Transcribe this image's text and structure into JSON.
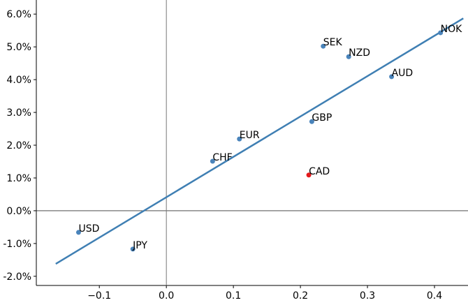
{
  "chart_data": {
    "type": "scatter",
    "categories": [
      "USD",
      "JPY",
      "CHF",
      "EUR",
      "GBP",
      "CAD",
      "SEK",
      "NZD",
      "AUD",
      "NOK"
    ],
    "x": [
      -0.131,
      -0.05,
      0.069,
      0.109,
      0.217,
      0.2125,
      0.234,
      0.272,
      0.336,
      0.409
    ],
    "values": [
      -0.66,
      -1.17,
      1.51,
      2.19,
      2.72,
      1.09,
      5.02,
      4.7,
      4.09,
      5.43
    ],
    "colors": [
      "#4a84bb",
      "#4a84bb",
      "#4a84bb",
      "#4a84bb",
      "#4a84bb",
      "#e41a1c",
      "#4a84bb",
      "#4a84bb",
      "#4a84bb",
      "#4a84bb"
    ],
    "fit": {
      "x": [
        -0.165,
        0.443
      ],
      "values": [
        -1.62,
        5.87
      ],
      "color": "#3f7fb3"
    },
    "axhline": 0,
    "axvline": 0,
    "xlim": [
      -0.194,
      0.45
    ],
    "ylim": [
      -2.28,
      6.43
    ],
    "xticks": [
      {
        "value": -0.1,
        "label": "−0.1"
      },
      {
        "value": 0,
        "label": "0.0"
      },
      0.1,
      0.2,
      0.3,
      0.4
    ],
    "yticks": [
      {
        "value": -2,
        "label": "-2.0%"
      },
      {
        "value": -1,
        "label": "-1.0%"
      },
      {
        "value": 0,
        "label": "0.0%"
      },
      {
        "value": 1,
        "label": "1.0%"
      },
      {
        "value": 2,
        "label": "2.0%"
      },
      {
        "value": 3,
        "label": "3.0%"
      },
      {
        "value": 4,
        "label": "4.0%"
      },
      {
        "value": 5,
        "label": "5.0%"
      },
      {
        "value": 6,
        "label": "6.0%"
      }
    ]
  }
}
